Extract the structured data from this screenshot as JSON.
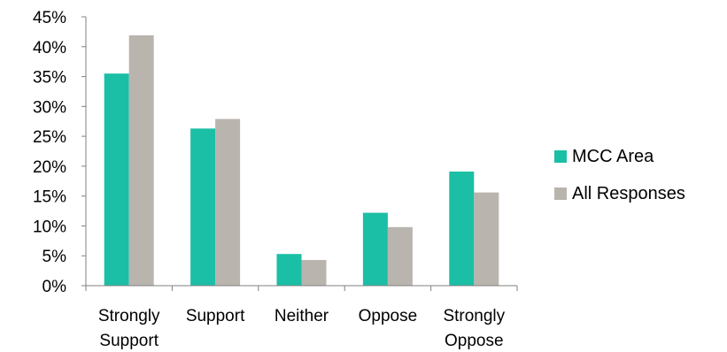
{
  "chart_data": {
    "type": "bar",
    "categories": [
      [
        "Strongly",
        "Support"
      ],
      [
        "Support"
      ],
      [
        "Neither"
      ],
      [
        "Oppose"
      ],
      [
        "Strongly",
        "Oppose"
      ]
    ],
    "series": [
      {
        "name": "MCC Area",
        "color": "#1bbfa5",
        "values": [
          35.5,
          26.3,
          5.3,
          12.2,
          19.1
        ]
      },
      {
        "name": "All Responses",
        "color": "#b9b4ae",
        "values": [
          41.9,
          27.9,
          4.3,
          9.8,
          15.6
        ]
      }
    ],
    "ylim": [
      0,
      45
    ],
    "yticks": [
      "0%",
      "5%",
      "10%",
      "15%",
      "20%",
      "25%",
      "30%",
      "35%",
      "40%",
      "45%"
    ],
    "grid": false,
    "legend_position": "right"
  }
}
